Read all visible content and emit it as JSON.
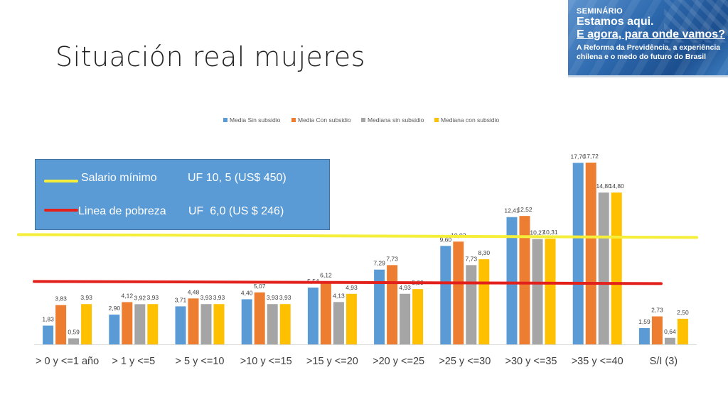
{
  "slide": {
    "title": "Situación real mujeres"
  },
  "banner": {
    "seminar": "SEMINÁRIO",
    "line1": "Estamos aqui.",
    "line2": "E agora, para onde vamos?",
    "sub1": "A Reforma da Previdência, a experiência",
    "sub2": "chilena e o medo do futuro do Brasil"
  },
  "colors": {
    "series": [
      "#5b9bd5",
      "#ed7d31",
      "#a5a5a5",
      "#ffc000"
    ],
    "salario": "#f5ef3b",
    "pobreza": "#e3211c",
    "legend_box": "#5b9bd5"
  },
  "reference_box": {
    "salario_label": "Salario mínimo",
    "salario_value": "UF 10, 5 (US$ 450)",
    "pobreza_label": "Linea de pobreza",
    "pobreza_value": "UF  6,0 (US $ 246)"
  },
  "chart_data": {
    "type": "bar",
    "categories": [
      "> 0 y <=1 año",
      "> 1 y <=5",
      "> 5 y <=10",
      ">10 y <=15",
      ">15 y <=20",
      ">20 y <=25",
      ">25 y <=30",
      ">30 y <=35",
      ">35 y <=40",
      "S/I (3)"
    ],
    "series": [
      {
        "name": "Media Sin subsidio",
        "values": [
          1.83,
          2.9,
          3.71,
          4.4,
          5.54,
          7.29,
          9.6,
          12.41,
          17.7,
          1.59
        ],
        "labels": [
          "1,83",
          "2,90",
          "3,71",
          "4,40",
          "5,54",
          "7,29",
          "9,60",
          "12,41",
          "17,70",
          "1,59"
        ]
      },
      {
        "name": "Media Con subsidio",
        "values": [
          3.83,
          4.12,
          4.48,
          5.07,
          6.12,
          7.73,
          10.02,
          12.52,
          17.72,
          2.73
        ],
        "labels": [
          "3,83",
          "4,12",
          "4,48",
          "5,07",
          "6,12",
          "7,73",
          "10,02",
          "12,52",
          "17,72",
          "2,73"
        ]
      },
      {
        "name": "Mediana sin subsidio",
        "values": [
          0.59,
          3.92,
          3.93,
          3.93,
          4.13,
          4.93,
          7.73,
          10.27,
          14.8,
          0.64
        ],
        "labels": [
          "0,59",
          "3,92",
          "3,93",
          "3,93",
          "4,13",
          "4,93",
          "7,73",
          "10,27",
          "14,80",
          "0,64"
        ]
      },
      {
        "name": "Mediana con subsidio",
        "values": [
          3.93,
          3.93,
          3.93,
          3.93,
          4.93,
          5.39,
          8.3,
          10.31,
          14.8,
          2.5
        ],
        "labels": [
          "3,93",
          "3,93",
          "3,93",
          "3,93",
          "4,93",
          "5,39",
          "8,30",
          "10,31",
          "14,80",
          "2,50"
        ]
      }
    ],
    "reference_lines": [
      {
        "name": "Salario mínimo",
        "value": 10.5
      },
      {
        "name": "Linea de pobreza",
        "value": 6.0
      }
    ],
    "ylim": [
      0,
      18
    ],
    "legend": "top-center",
    "grid": false
  }
}
